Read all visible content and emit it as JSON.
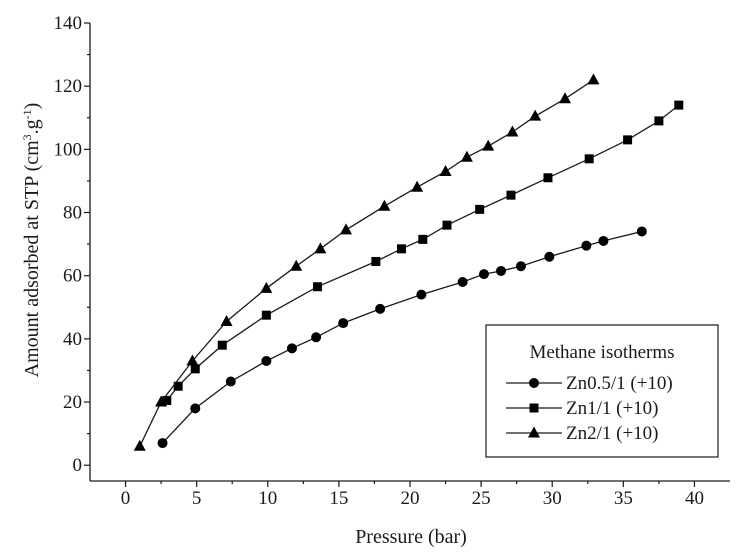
{
  "chart_data": {
    "type": "line",
    "title": "",
    "xlabel": "Pressure (bar)",
    "ylabel_main": "Amount adsorbed at STP (cm",
    "ylabel_sup1": "3",
    "ylabel_mid": ".g",
    "ylabel_sup2": "-1",
    "ylabel_end": ")",
    "xlim": [
      -2.5,
      42.5
    ],
    "ylim": [
      -5,
      140
    ],
    "x_ticks": [
      0,
      5,
      10,
      15,
      20,
      25,
      30,
      35,
      40
    ],
    "y_ticks": [
      0,
      20,
      40,
      60,
      80,
      100,
      120,
      140
    ],
    "grid": false,
    "legend": {
      "title": "Methane isotherms",
      "placement": "bottom-right"
    },
    "series": [
      {
        "name": "Zn0.5/1 (+10)",
        "marker": "circle",
        "points": [
          [
            2.6,
            7
          ],
          [
            4.9,
            18
          ],
          [
            7.4,
            26.5
          ],
          [
            9.9,
            33
          ],
          [
            11.7,
            37
          ],
          [
            13.4,
            40.5
          ],
          [
            15.3,
            45
          ],
          [
            17.9,
            49.5
          ],
          [
            20.8,
            54
          ],
          [
            23.7,
            58
          ],
          [
            25.2,
            60.5
          ],
          [
            26.4,
            61.5
          ],
          [
            27.8,
            63
          ],
          [
            29.8,
            66
          ],
          [
            32.4,
            69.5
          ],
          [
            33.6,
            71
          ],
          [
            36.3,
            74
          ]
        ]
      },
      {
        "name": "Zn1/1 (+10)",
        "marker": "square",
        "points": [
          [
            2.9,
            20.5
          ],
          [
            3.7,
            25
          ],
          [
            4.9,
            30.5
          ],
          [
            6.8,
            38
          ],
          [
            9.9,
            47.5
          ],
          [
            13.5,
            56.5
          ],
          [
            17.6,
            64.5
          ],
          [
            19.4,
            68.5
          ],
          [
            20.9,
            71.5
          ],
          [
            22.6,
            76
          ],
          [
            24.9,
            81
          ],
          [
            27.1,
            85.5
          ],
          [
            29.7,
            91
          ],
          [
            32.6,
            97
          ],
          [
            35.3,
            103
          ],
          [
            37.5,
            109
          ],
          [
            38.9,
            114
          ]
        ]
      },
      {
        "name": "Zn2/1 (+10)",
        "marker": "triangle",
        "points": [
          [
            1.0,
            6
          ],
          [
            2.5,
            20
          ],
          [
            4.7,
            33
          ],
          [
            7.1,
            45.5
          ],
          [
            9.9,
            56
          ],
          [
            12.0,
            63
          ],
          [
            13.7,
            68.5
          ],
          [
            15.5,
            74.5
          ],
          [
            18.2,
            82
          ],
          [
            20.5,
            88
          ],
          [
            22.5,
            93
          ],
          [
            24.0,
            97.5
          ],
          [
            25.5,
            101
          ],
          [
            27.2,
            105.5
          ],
          [
            28.8,
            110.5
          ],
          [
            30.9,
            116
          ],
          [
            32.9,
            122
          ]
        ]
      }
    ]
  }
}
